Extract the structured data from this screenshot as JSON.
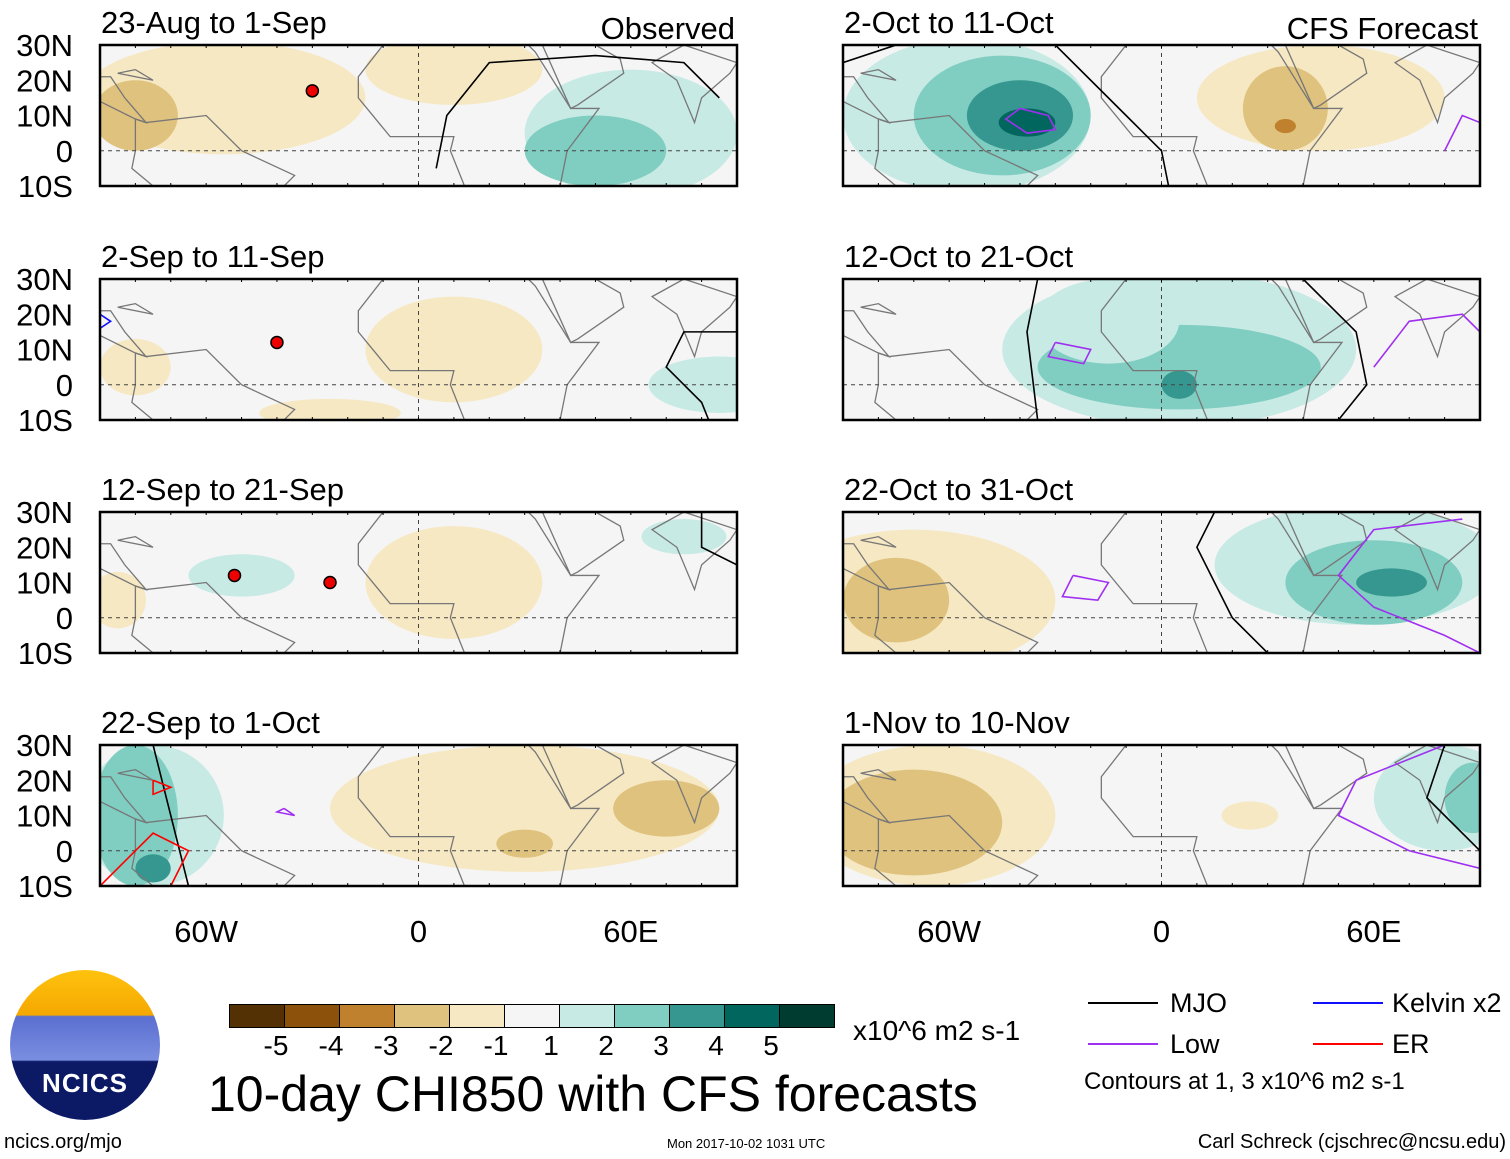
{
  "title": "10-day CHI850 with CFS forecasts",
  "footer": {
    "left": "ncics.org/mjo",
    "center": "Mon 2017-10-02 1031 UTC",
    "right": "Carl Schreck (cjschrec@ncsu.edu)"
  },
  "logo_text": "NCICS",
  "colorbar": {
    "units": "x10^6 m2 s-1",
    "ticks": [
      "-5",
      "-4",
      "-3",
      "-2",
      "-1",
      "1",
      "2",
      "3",
      "4",
      "5"
    ],
    "colors": [
      "#543005",
      "#8c510a",
      "#bf812d",
      "#dfc27d",
      "#f6e8c3",
      "#f5f5f5",
      "#c7eae5",
      "#80cdc1",
      "#35978f",
      "#01665e",
      "#003c30"
    ]
  },
  "legend": {
    "items": [
      {
        "label": "MJO",
        "color": "#000000"
      },
      {
        "label": "Kelvin x2",
        "color": "#1010ff"
      },
      {
        "label": "Low",
        "color": "#a030f0"
      },
      {
        "label": "ER",
        "color": "#ff0000"
      }
    ],
    "note": "Contours at 1, 3 x10^6 m2 s-1"
  },
  "chart_data": {
    "type": "map",
    "lat_ticks": [
      "30N",
      "20N",
      "10N",
      "0",
      "10S"
    ],
    "lon_ticks": [
      "60W",
      "0",
      "60E"
    ],
    "lon_range": [
      -90,
      90
    ],
    "lat_range": [
      -10,
      30
    ],
    "column_headers": [
      "Observed",
      "CFS Forecast"
    ],
    "panels": [
      {
        "title": "23-Aug to 1-Sep",
        "header": "Observed",
        "blobs": [
          [
            -55,
            15,
            40,
            16,
            -1
          ],
          [
            -80,
            10,
            12,
            10,
            -2
          ],
          [
            10,
            23,
            25,
            10,
            -1
          ],
          [
            60,
            5,
            30,
            18,
            1
          ],
          [
            50,
            0,
            20,
            10,
            2
          ]
        ],
        "contours": [
          {
            "type": "MJO",
            "pts": [
              [
                5,
                -5
              ],
              [
                8,
                10
              ],
              [
                20,
                25
              ],
              [
                50,
                27
              ],
              [
                75,
                25
              ],
              [
                85,
                15
              ]
            ]
          }
        ],
        "storms": [
          [
            -30,
            17
          ]
        ]
      },
      {
        "title": "2-Oct to 11-Oct",
        "header": "CFS Forecast",
        "blobs": [
          [
            -55,
            10,
            35,
            22,
            1
          ],
          [
            -45,
            10,
            25,
            17,
            2
          ],
          [
            -40,
            10,
            15,
            10,
            3
          ],
          [
            -38,
            8,
            8,
            4,
            4
          ],
          [
            45,
            15,
            35,
            15,
            -1
          ],
          [
            35,
            12,
            12,
            12,
            -2
          ],
          [
            35,
            7,
            3,
            2,
            -3
          ]
        ],
        "contours": [
          {
            "type": "MJO",
            "pts": [
              [
                -30,
                30
              ],
              [
                -10,
                10
              ],
              [
                0,
                0
              ],
              [
                2,
                -10
              ]
            ]
          },
          {
            "type": "MJO",
            "pts": [
              [
                -90,
                25
              ],
              [
                -75,
                30
              ]
            ]
          },
          {
            "type": "Low",
            "pts": [
              [
                -40,
                12
              ],
              [
                -32,
                10
              ],
              [
                -30,
                6
              ],
              [
                -38,
                5
              ],
              [
                -44,
                9
              ],
              [
                -40,
                12
              ]
            ]
          },
          {
            "type": "Low",
            "pts": [
              [
                80,
                0
              ],
              [
                85,
                10
              ],
              [
                90,
                8
              ]
            ]
          }
        ],
        "storms": []
      },
      {
        "title": "2-Sep to 11-Sep",
        "header": "",
        "blobs": [
          [
            -80,
            5,
            10,
            8,
            -1
          ],
          [
            10,
            10,
            25,
            15,
            -1
          ],
          [
            -25,
            -8,
            20,
            4,
            -1
          ],
          [
            85,
            0,
            20,
            8,
            1
          ]
        ],
        "contours": [
          {
            "type": "MJO",
            "pts": [
              [
                90,
                15
              ],
              [
                75,
                15
              ],
              [
                70,
                5
              ],
              [
                80,
                -5
              ],
              [
                82,
                -10
              ]
            ]
          },
          {
            "type": "Kelvin",
            "pts": [
              [
                -90,
                20
              ],
              [
                -87,
                18
              ],
              [
                -90,
                16
              ]
            ]
          }
        ],
        "storms": [
          [
            -40,
            12
          ]
        ]
      },
      {
        "title": "12-Oct to 21-Oct",
        "header": "",
        "blobs": [
          [
            5,
            10,
            50,
            22,
            1
          ],
          [
            5,
            5,
            40,
            12,
            2
          ],
          [
            5,
            0,
            5,
            4,
            3
          ],
          [
            -15,
            18,
            20,
            12,
            1
          ]
        ],
        "contours": [
          {
            "type": "MJO",
            "pts": [
              [
                -35,
                30
              ],
              [
                -38,
                15
              ],
              [
                -35,
                -10
              ]
            ]
          },
          {
            "type": "MJO",
            "pts": [
              [
                40,
                30
              ],
              [
                55,
                15
              ],
              [
                58,
                0
              ],
              [
                50,
                -10
              ]
            ]
          },
          {
            "type": "Low",
            "pts": [
              [
                -30,
                12
              ],
              [
                -20,
                10
              ],
              [
                -22,
                6
              ],
              [
                -32,
                8
              ],
              [
                -30,
                12
              ]
            ]
          },
          {
            "type": "Low",
            "pts": [
              [
                60,
                5
              ],
              [
                70,
                18
              ],
              [
                85,
                20
              ],
              [
                90,
                15
              ]
            ]
          }
        ],
        "storms": []
      },
      {
        "title": "12-Sep to 21-Sep",
        "header": "",
        "blobs": [
          [
            10,
            10,
            25,
            16,
            -1
          ],
          [
            -50,
            12,
            15,
            6,
            1
          ],
          [
            -85,
            5,
            8,
            8,
            -1
          ],
          [
            75,
            23,
            12,
            5,
            1
          ]
        ],
        "contours": [
          {
            "type": "MJO",
            "pts": [
              [
                80,
                30
              ],
              [
                80,
                20
              ],
              [
                90,
                15
              ]
            ]
          }
        ],
        "storms": [
          [
            -52,
            12
          ],
          [
            -25,
            10
          ]
        ]
      },
      {
        "title": "22-Oct to 31-Oct",
        "header": "",
        "blobs": [
          [
            -70,
            5,
            40,
            20,
            -1
          ],
          [
            -75,
            5,
            15,
            12,
            -2
          ],
          [
            55,
            15,
            40,
            17,
            1
          ],
          [
            60,
            10,
            25,
            12,
            2
          ],
          [
            65,
            10,
            10,
            4,
            3
          ]
        ],
        "contours": [
          {
            "type": "MJO",
            "pts": [
              [
                15,
                30
              ],
              [
                10,
                20
              ],
              [
                20,
                0
              ],
              [
                30,
                -10
              ]
            ]
          },
          {
            "type": "Low",
            "pts": [
              [
                -25,
                12
              ],
              [
                -15,
                10
              ],
              [
                -18,
                5
              ],
              [
                -28,
                6
              ],
              [
                -25,
                12
              ]
            ]
          },
          {
            "type": "Low",
            "pts": [
              [
                85,
                28
              ],
              [
                60,
                25
              ],
              [
                50,
                12
              ],
              [
                60,
                3
              ],
              [
                80,
                -5
              ],
              [
                90,
                -10
              ]
            ]
          }
        ],
        "storms": []
      },
      {
        "title": "22-Sep to 1-Oct",
        "header": "",
        "blobs": [
          [
            -75,
            10,
            20,
            20,
            1
          ],
          [
            -80,
            10,
            12,
            20,
            2
          ],
          [
            -75,
            -5,
            5,
            4,
            3
          ],
          [
            30,
            12,
            55,
            18,
            -1
          ],
          [
            70,
            12,
            15,
            8,
            -2
          ],
          [
            30,
            2,
            8,
            4,
            -2
          ]
        ],
        "contours": [
          {
            "type": "MJO",
            "pts": [
              [
                -75,
                30
              ],
              [
                -70,
                10
              ],
              [
                -65,
                -10
              ]
            ]
          },
          {
            "type": "ER",
            "pts": [
              [
                -90,
                -10
              ],
              [
                -75,
                5
              ],
              [
                -65,
                0
              ],
              [
                -70,
                -10
              ]
            ]
          },
          {
            "type": "ER",
            "pts": [
              [
                -75,
                20
              ],
              [
                -70,
                18
              ],
              [
                -75,
                16
              ],
              [
                -75,
                20
              ]
            ]
          },
          {
            "type": "Low",
            "pts": [
              [
                -38,
                12
              ],
              [
                -35,
                10
              ],
              [
                -40,
                11
              ],
              [
                -38,
                12
              ]
            ]
          }
        ],
        "storms": []
      },
      {
        "title": "1-Nov to 10-Nov",
        "header": "",
        "blobs": [
          [
            -65,
            10,
            35,
            20,
            -1
          ],
          [
            -70,
            8,
            25,
            15,
            -2
          ],
          [
            80,
            15,
            20,
            15,
            1
          ],
          [
            88,
            15,
            8,
            10,
            2
          ],
          [
            25,
            10,
            8,
            4,
            -1
          ]
        ],
        "contours": [
          {
            "type": "MJO",
            "pts": [
              [
                80,
                30
              ],
              [
                75,
                15
              ],
              [
                90,
                0
              ]
            ]
          },
          {
            "type": "Low",
            "pts": [
              [
                80,
                30
              ],
              [
                55,
                20
              ],
              [
                50,
                10
              ],
              [
                70,
                0
              ],
              [
                90,
                -5
              ]
            ]
          }
        ],
        "storms": []
      }
    ]
  }
}
